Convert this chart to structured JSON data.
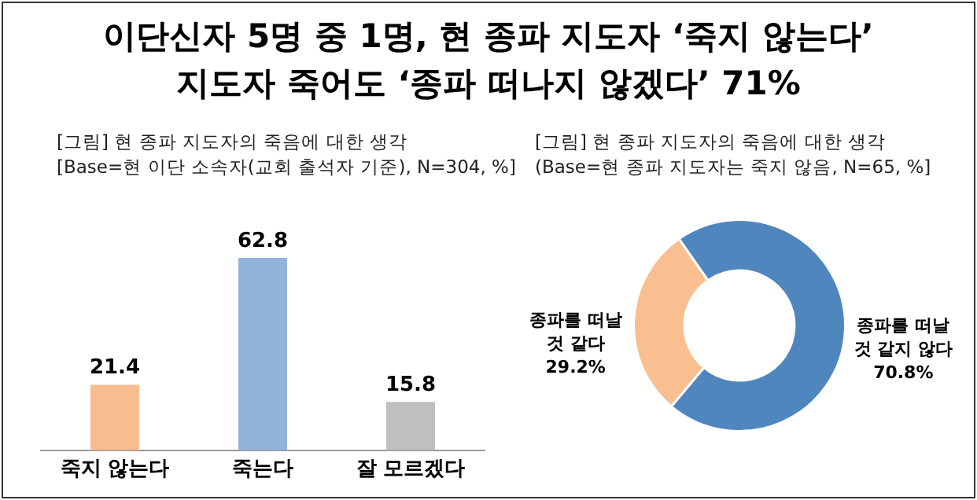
{
  "chart_data": [
    {
      "type": "other",
      "title": "이단신자 5명 중 1명, 현 종파 지도자 ‘죽지 않는다’\n지도자 죽어도 ‘종파 떠나지 않겠다’ 71%"
    },
    {
      "type": "bar",
      "title": "[그림] 현 종파 지도자의 죽음에 대한 생각",
      "subtitle": "[Base=현 이단 소속자(교회 출석자 기준), N=304, %]",
      "categories": [
        "죽지 않는다",
        "죽는다",
        "잘 모르겠다"
      ],
      "values": [
        21.4,
        62.8,
        15.8
      ],
      "colors": [
        "#f8bd8f",
        "#93b3dc",
        "#bfbfbf"
      ],
      "data_labels": true,
      "grid": false,
      "legend": false
    },
    {
      "type": "donut",
      "title": "[그림] 현 종파 지도자의 죽음에 대한 생각",
      "subtitle": "(Base=현 종파 지도자는 죽지 않음, N=65, %]",
      "categories": [
        "종파를 떠날 것 같다",
        "종파를 떠날 것 같지 않다"
      ],
      "values": [
        29.2,
        70.8
      ],
      "colors": [
        "#f9bf91",
        "#4f86be"
      ],
      "value_labels": [
        "29.2%",
        "70.8%"
      ],
      "legend": false
    }
  ]
}
